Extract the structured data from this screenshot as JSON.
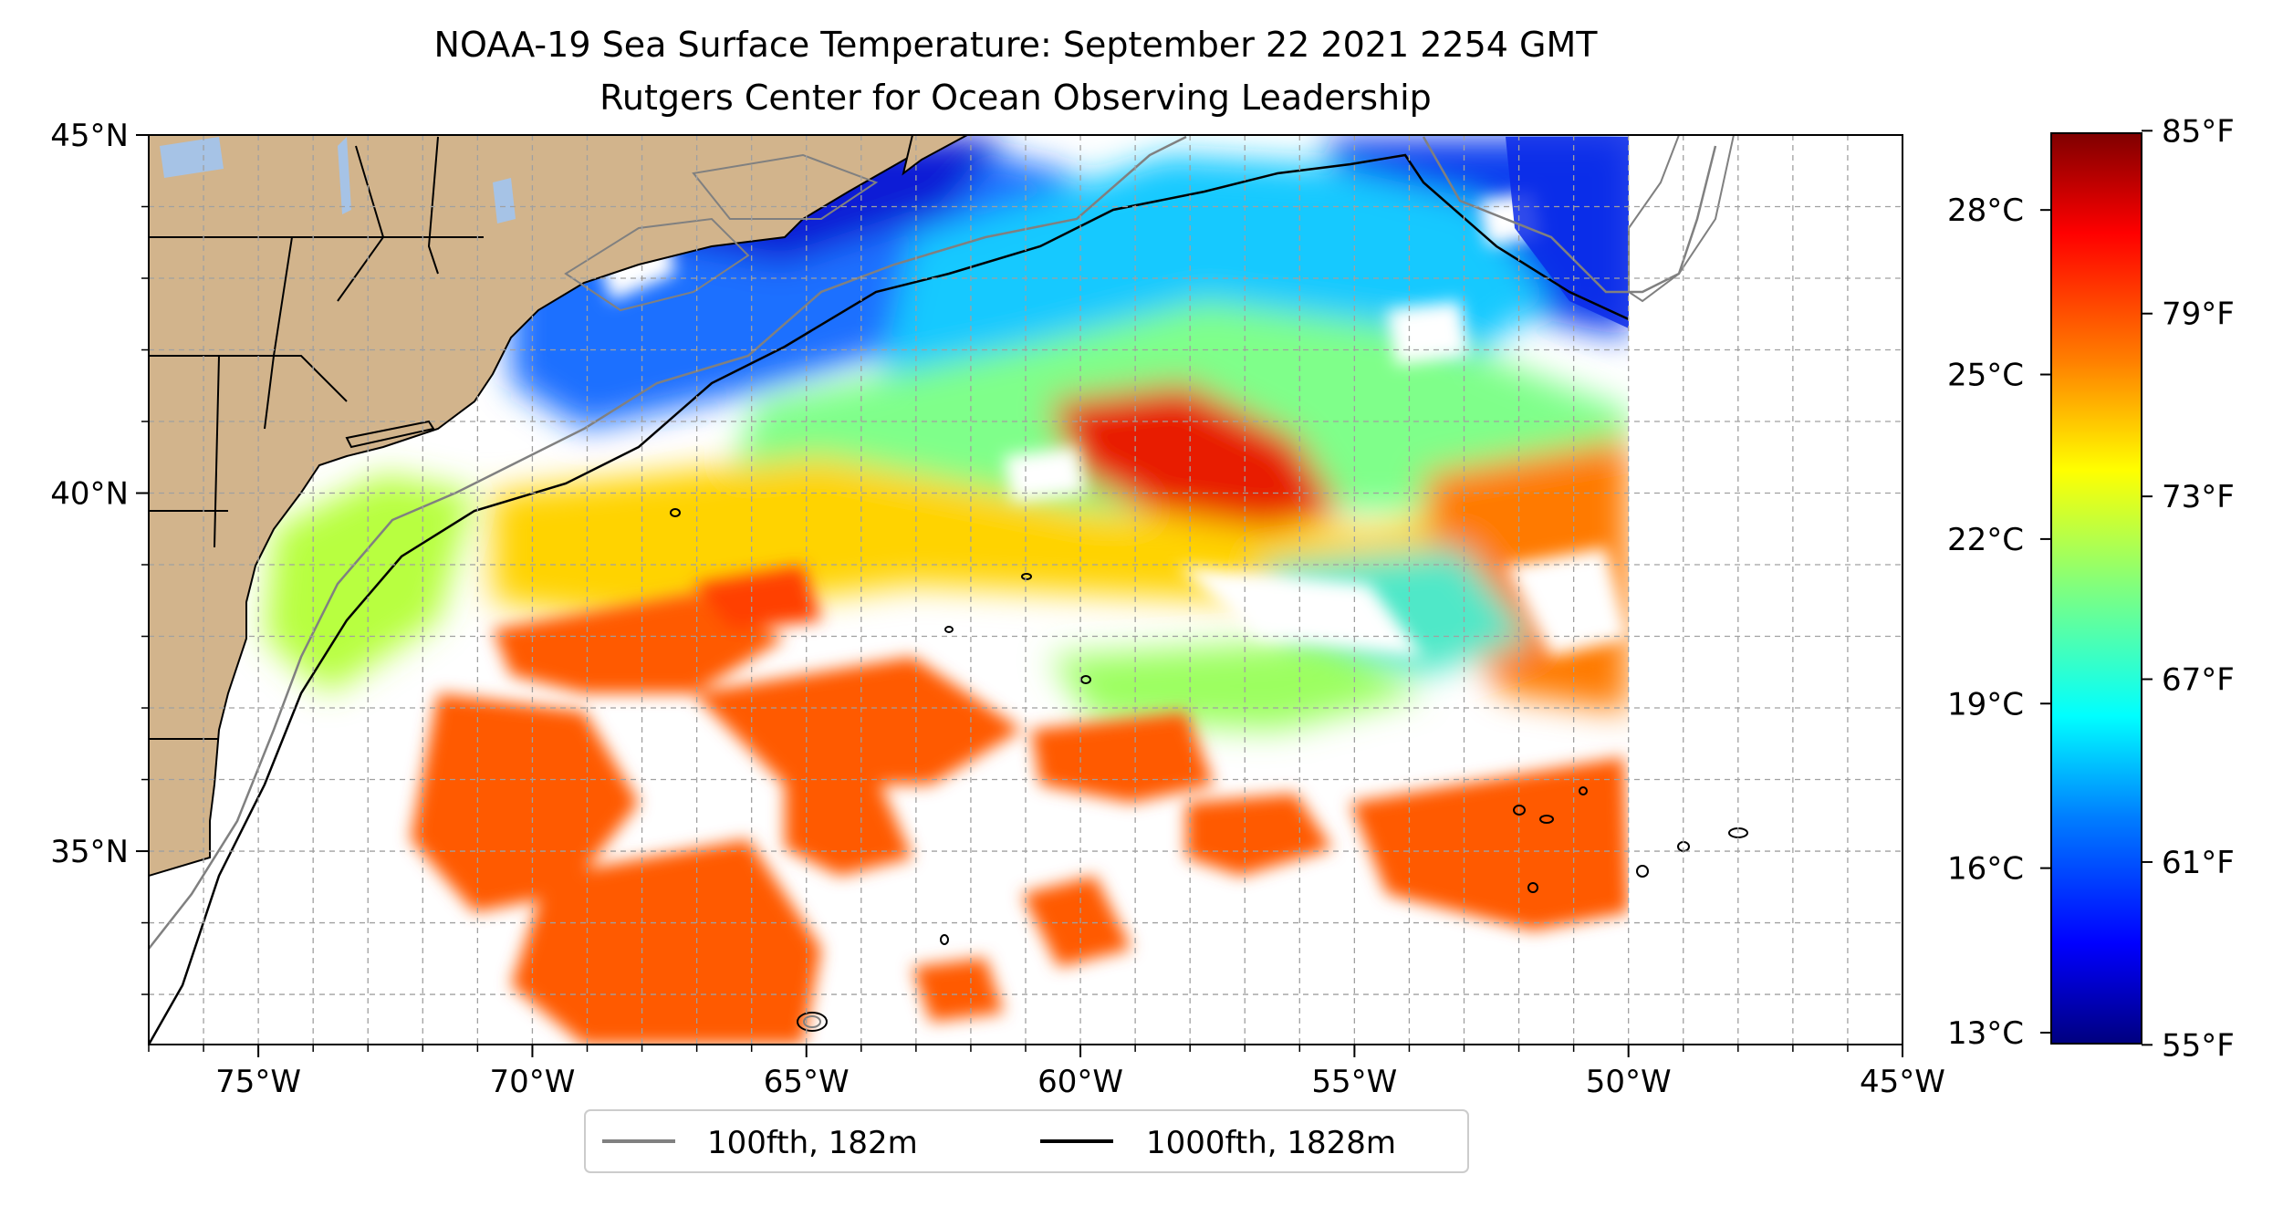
{
  "title": {
    "line1": "NOAA-19 Sea Surface Temperature: September 22 2021 2254 GMT",
    "line2": "Rutgers Center for Ocean Observing Leadership"
  },
  "map": {
    "lon_range": [
      -77,
      -45
    ],
    "lat_range": [
      32.3,
      45
    ],
    "lon_ticks": [
      {
        "value": -75,
        "label": "75°W"
      },
      {
        "value": -70,
        "label": "70°W"
      },
      {
        "value": -65,
        "label": "65°W"
      },
      {
        "value": -60,
        "label": "60°W"
      },
      {
        "value": -55,
        "label": "55°W"
      },
      {
        "value": -50,
        "label": "50°W"
      },
      {
        "value": -45,
        "label": "45°W"
      }
    ],
    "lat_ticks": [
      {
        "value": 45,
        "label": "45°N"
      },
      {
        "value": 40,
        "label": "40°N"
      },
      {
        "value": 35,
        "label": "35°N"
      }
    ],
    "gridlines": true,
    "colors": {
      "land": "#d2b48c",
      "lakes": "#a6c3e6",
      "no_data": "#ffffff",
      "contour_100fth": "#808080",
      "contour_1000fth": "#000000"
    }
  },
  "legend": {
    "placement": "bottom-center",
    "entries": [
      {
        "label": "100fth, 182m",
        "color": "#808080"
      },
      {
        "label": "1000fth, 1828m",
        "color": "#000000"
      }
    ]
  },
  "colorbar": {
    "colormap": "jet",
    "range_c": [
      12.8,
      29.4
    ],
    "celsius_ticks": [
      "28°C",
      "25°C",
      "22°C",
      "19°C",
      "16°C",
      "13°C"
    ],
    "fahrenheit_ticks": [
      "85°F",
      "79°F",
      "73°F",
      "67°F",
      "61°F",
      "55°F"
    ],
    "jet_stops": [
      "#00007f",
      "#0000ff",
      "#007fff",
      "#00ffff",
      "#7fff7f",
      "#ffff00",
      "#ff7f00",
      "#ff0000",
      "#7f0000"
    ]
  }
}
